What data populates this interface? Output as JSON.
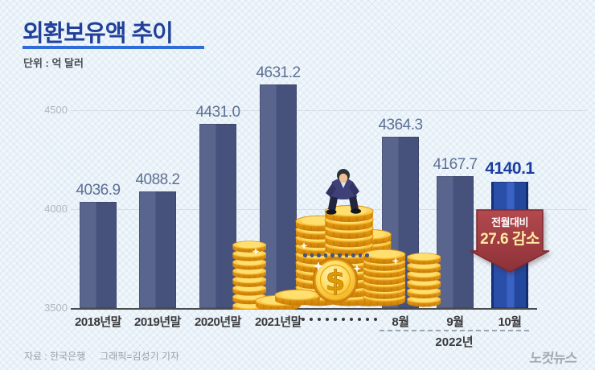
{
  "header": {
    "title": "외환보유액 추이",
    "unit_label": "단위 : 억 달러"
  },
  "callout": {
    "line1": "전월대비",
    "line2": "27.6 감소"
  },
  "footer": {
    "source": "자료 : 한국은행",
    "credit": "그래픽=김성기 기자",
    "logo": "노컷뉴스"
  },
  "icons": {
    "coins": "gold-coins-illustration",
    "dollar_coin": "dollar-coin-icon",
    "businessman": "businessman-figure",
    "axis_break": "ellipsis-dots-icon",
    "decrease_arrow": "down-arrow-callout"
  },
  "chart_data": {
    "type": "bar",
    "title": "외환보유액 추이",
    "unit": "억 달러",
    "categories": [
      "2018년말",
      "2019년말",
      "2020년말",
      "2021년말",
      "8월",
      "9월",
      "10월"
    ],
    "values": [
      4036.9,
      4088.2,
      4431.0,
      4631.2,
      4364.3,
      4167.7,
      4140.1
    ],
    "value_labels": [
      "4036.9",
      "4088.2",
      "4431.0",
      "4631.2",
      "4364.3",
      "4167.7",
      "4140.1"
    ],
    "highlight_index": 6,
    "break_after_index": 3,
    "year_group": {
      "label": "2022년",
      "members": [
        "8월",
        "9월",
        "10월"
      ]
    },
    "ylim": [
      3500,
      4650
    ],
    "yticks": [
      3500,
      4000,
      4500
    ],
    "grid": true,
    "legend": false,
    "annotation": {
      "target": "10월",
      "line1": "전월대비",
      "line2": "27.6 감소"
    },
    "colors": {
      "bar": "#4e5981",
      "bar_highlight": "#2a50ac",
      "value_label": "#5d7095",
      "value_label_highlight": "#1c3da0",
      "annotation_red": "#a23a41",
      "title_blue": "#21409a",
      "underline_blue": "#2f6cd8"
    }
  }
}
